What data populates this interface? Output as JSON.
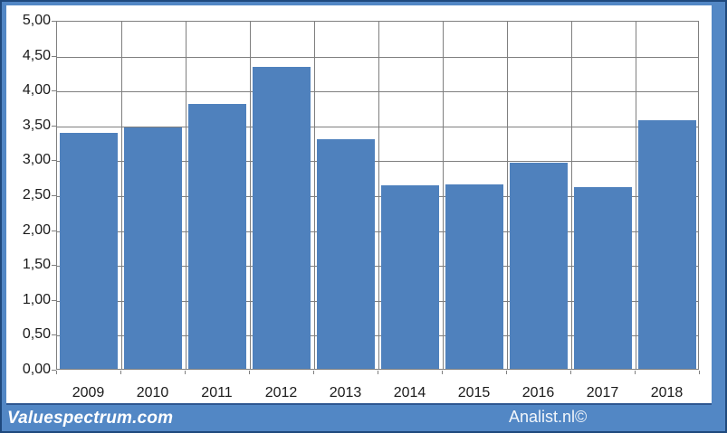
{
  "chart_data": {
    "type": "bar",
    "categories": [
      "2009",
      "2010",
      "2011",
      "2012",
      "2013",
      "2014",
      "2015",
      "2016",
      "2017",
      "2018"
    ],
    "values": [
      3.38,
      3.46,
      3.8,
      4.32,
      3.29,
      2.63,
      2.64,
      2.95,
      2.6,
      3.56
    ],
    "title": "",
    "xlabel": "",
    "ylabel": "",
    "ylim": [
      0,
      5
    ],
    "ytick_step": 0.5,
    "ytick_labels": [
      "0,00",
      "0,50",
      "1,00",
      "1,50",
      "2,00",
      "2,50",
      "3,00",
      "3,50",
      "4,00",
      "4,50",
      "5,00"
    ],
    "grid": true,
    "legend": "none",
    "bar_color": "#4f81bd",
    "gridline_color": "#7f7f7f",
    "plot_border_color": "#7f7f7f",
    "frame_color": "#5287c5",
    "outer_border_color": "#1f497d"
  },
  "footer": {
    "left_text": "Valuespectrum.com",
    "right_text": "Analist.nl©"
  }
}
